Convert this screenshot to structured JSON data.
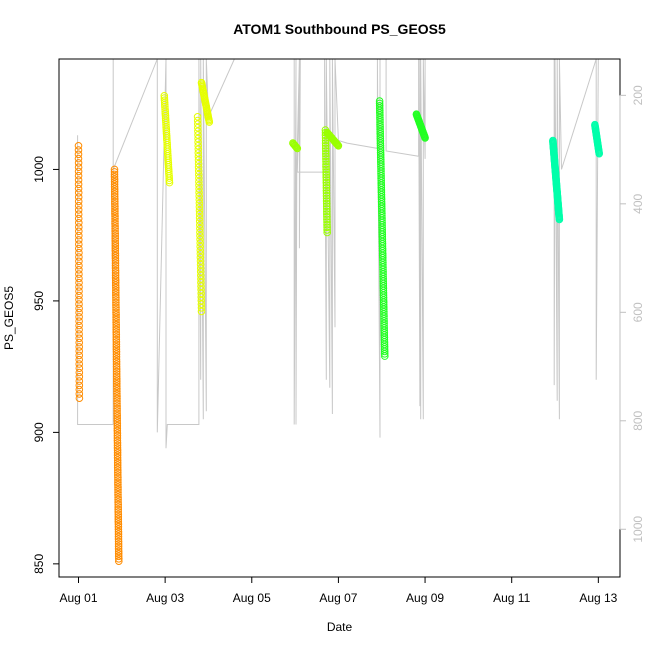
{
  "chart_data": {
    "type": "scatter",
    "title": "ATOM1 Southbound PS_GEOS5",
    "xlabel": "Date",
    "ylabel": "PS_GEOS5",
    "x_ticks": [
      "Aug 01",
      "Aug 03",
      "Aug 05",
      "Aug 07",
      "Aug 09",
      "Aug 11",
      "Aug 13"
    ],
    "x_tick_days": [
      1,
      3,
      5,
      7,
      9,
      11,
      13
    ],
    "xlim_days": [
      0.55,
      13.5
    ],
    "ylim": [
      845,
      1042
    ],
    "y_ticks": [
      850,
      900,
      950,
      1000
    ],
    "right_axis": {
      "ticks": [
        200,
        400,
        600,
        800,
        1000
      ],
      "range": [
        1088,
        133
      ],
      "color": "#c0c0c0"
    },
    "grid": false,
    "legend": "none",
    "series": [
      {
        "color": "#ff8c00",
        "segments": [
          {
            "x0": 1.0,
            "x1": 1.02,
            "y_top": 1009,
            "y_bottom": 913,
            "n": 60
          },
          {
            "x0": 1.83,
            "x1": 1.93,
            "y_top": 1000,
            "y_bottom": 851,
            "n": 160
          }
        ]
      },
      {
        "color": "#e6ff00",
        "segments": [
          {
            "x0": 2.98,
            "x1": 3.1,
            "y_top": 1028,
            "y_bottom": 995,
            "n": 40
          },
          {
            "x0": 3.75,
            "x1": 3.84,
            "y_top": 1020,
            "y_bottom": 946,
            "n": 55
          },
          {
            "x0": 3.84,
            "x1": 4.02,
            "y_top": 1033,
            "y_bottom": 1018,
            "n": 30
          }
        ]
      },
      {
        "color": "#99ff00",
        "segments": [
          {
            "x0": 5.95,
            "x1": 6.05,
            "y_top": 1010,
            "y_bottom": 1008,
            "n": 8
          },
          {
            "x0": 6.7,
            "x1": 6.74,
            "y_top": 1015,
            "y_bottom": 976,
            "n": 40
          },
          {
            "x0": 6.74,
            "x1": 7.0,
            "y_top": 1014,
            "y_bottom": 1009,
            "n": 22
          }
        ]
      },
      {
        "color": "#22ff22",
        "segments": [
          {
            "x0": 7.95,
            "x1": 8.07,
            "y_top": 1026,
            "y_bottom": 929,
            "n": 110
          },
          {
            "x0": 8.8,
            "x1": 9.0,
            "y_top": 1021,
            "y_bottom": 1012,
            "n": 30
          }
        ]
      },
      {
        "color": "#00ffaa",
        "segments": [
          {
            "x0": 11.95,
            "x1": 12.1,
            "y_top": 1011,
            "y_bottom": 981,
            "n": 90
          },
          {
            "x0": 12.92,
            "x1": 13.02,
            "y_top": 1017,
            "y_bottom": 1006,
            "n": 30
          }
        ]
      }
    ],
    "altitude_trace_color": "#c8c8c8"
  }
}
